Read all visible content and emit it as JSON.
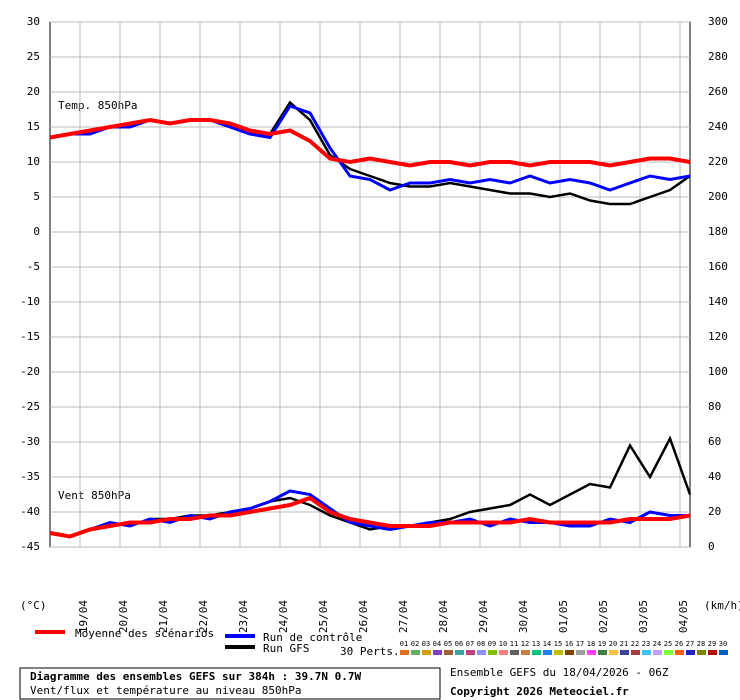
{
  "chart_data": {
    "type": "line",
    "title": "Diagramme des ensembles GEFS sur 384h : 39.7N 0.7W",
    "subtitle": "Vent/flux et température au niveau 850hPa",
    "run_label": "Ensemble GEFS du 18/04/2026 - 06Z",
    "copyright": "Copyright 2026 Meteociel.fr",
    "temp_panel_label": "Temp. 850hPa",
    "wind_panel_label": "Vent 850hPa",
    "y_label": "(°C)",
    "y2_label": "(km/h)",
    "perts_label": "30 Perts.",
    "grid": true,
    "xlim": [
      0,
      384
    ],
    "x": [
      0,
      12,
      24,
      36,
      48,
      60,
      72,
      84,
      96,
      108,
      120,
      132,
      144,
      156,
      168,
      180,
      192,
      204,
      216,
      228,
      240,
      252,
      264,
      276,
      288,
      300,
      312,
      324,
      336,
      348,
      360,
      372,
      384
    ],
    "xticks": [
      {
        "value": 18,
        "label": "19/04"
      },
      {
        "value": 42,
        "label": "20/04"
      },
      {
        "value": 66,
        "label": "21/04"
      },
      {
        "value": 90,
        "label": "22/04"
      },
      {
        "value": 114,
        "label": "23/04"
      },
      {
        "value": 138,
        "label": "24/04"
      },
      {
        "value": 162,
        "label": "25/04"
      },
      {
        "value": 186,
        "label": "26/04"
      },
      {
        "value": 210,
        "label": "27/04"
      },
      {
        "value": 234,
        "label": "28/04"
      },
      {
        "value": 258,
        "label": "29/04"
      },
      {
        "value": 282,
        "label": "30/04"
      },
      {
        "value": 306,
        "label": "01/05"
      },
      {
        "value": 330,
        "label": "02/05"
      },
      {
        "value": 354,
        "label": "03/05"
      },
      {
        "value": 378,
        "label": "04/05"
      }
    ],
    "ylim": [
      -45,
      30
    ],
    "yticks": [
      -45,
      -40,
      -35,
      -30,
      -25,
      -20,
      -15,
      -10,
      -5,
      0,
      5,
      10,
      15,
      20,
      25,
      30
    ],
    "y2lim": [
      0,
      300
    ],
    "y2ticks": [
      0,
      20,
      40,
      60,
      80,
      100,
      120,
      140,
      160,
      180,
      200,
      220,
      240,
      260,
      280,
      300
    ],
    "series": [
      {
        "name": "Moyenne des scénarios",
        "color": "#ff0000",
        "values": [
          13.5,
          14,
          14.5,
          15,
          15.5,
          16,
          15.5,
          16,
          16,
          15.5,
          14.5,
          14,
          14.5,
          13,
          10.5,
          10,
          10.5,
          10,
          9.5,
          10,
          10,
          9.5,
          10,
          10,
          9.5,
          10,
          10,
          10,
          9.5,
          10,
          10.5,
          10.5,
          10
        ]
      },
      {
        "name": "Run de contrôle",
        "color": "#0000ff",
        "values": [
          13.5,
          14,
          14,
          15,
          15,
          16,
          15.5,
          16,
          16,
          15,
          14,
          13.5,
          18,
          17,
          12,
          8,
          7.5,
          6,
          7,
          7,
          7.5,
          7,
          7.5,
          7,
          8,
          7,
          7.5,
          7,
          6,
          7,
          8,
          7.5,
          8
        ]
      },
      {
        "name": "Run GFS",
        "color": "#000000",
        "values": [
          13.5,
          14,
          14,
          15,
          15,
          16,
          15.5,
          16,
          16,
          15,
          14,
          14,
          18.5,
          16,
          11,
          9,
          8,
          7,
          6.5,
          6.5,
          7,
          6.5,
          6,
          5.5,
          5.5,
          5,
          5.5,
          4.5,
          4,
          4,
          5,
          6,
          8
        ]
      }
    ],
    "wind_series": [
      {
        "name": "Moyenne des scénarios",
        "color": "#ff0000",
        "axis": "y2",
        "values": [
          8,
          6,
          10,
          12,
          14,
          14,
          16,
          16,
          18,
          18,
          20,
          22,
          24,
          28,
          20,
          16,
          14,
          12,
          12,
          12,
          14,
          14,
          14,
          14,
          16,
          14,
          14,
          14,
          14,
          16,
          16,
          16,
          18
        ]
      },
      {
        "name": "Run de contrôle",
        "color": "#0000ff",
        "axis": "y2",
        "values": [
          8,
          6,
          10,
          14,
          12,
          16,
          14,
          18,
          16,
          20,
          22,
          26,
          32,
          30,
          22,
          14,
          12,
          10,
          12,
          14,
          14,
          16,
          12,
          16,
          14,
          14,
          12,
          12,
          16,
          14,
          20,
          18,
          18
        ]
      },
      {
        "name": "Run GFS",
        "color": "#000000",
        "axis": "y2",
        "values": [
          8,
          6,
          10,
          14,
          12,
          16,
          16,
          18,
          18,
          20,
          22,
          26,
          28,
          24,
          18,
          14,
          10,
          12,
          12,
          14,
          16,
          20,
          22,
          24,
          30,
          24,
          30,
          36,
          34,
          58,
          40,
          62,
          30
        ]
      }
    ],
    "perturbations": [
      {
        "name": "01",
        "color": "#e07020"
      },
      {
        "name": "02",
        "color": "#60b060"
      },
      {
        "name": "03",
        "color": "#d0a000"
      },
      {
        "name": "04",
        "color": "#8040c0"
      },
      {
        "name": "05",
        "color": "#a06030"
      },
      {
        "name": "06",
        "color": "#40a0a0"
      },
      {
        "name": "07",
        "color": "#c04080"
      },
      {
        "name": "08",
        "color": "#9090ff"
      },
      {
        "name": "09",
        "color": "#80c000"
      },
      {
        "name": "10",
        "color": "#ff8080"
      },
      {
        "name": "11",
        "color": "#606060"
      },
      {
        "name": "12",
        "color": "#c08040"
      },
      {
        "name": "13",
        "color": "#00c080"
      },
      {
        "name": "14",
        "color": "#2080ff"
      },
      {
        "name": "15",
        "color": "#c0c000"
      },
      {
        "name": "16",
        "color": "#804000"
      },
      {
        "name": "17",
        "color": "#a0a0a0"
      },
      {
        "name": "18",
        "color": "#ff40ff"
      },
      {
        "name": "19",
        "color": "#408040"
      },
      {
        "name": "20",
        "color": "#ffc040"
      },
      {
        "name": "21",
        "color": "#4040a0"
      },
      {
        "name": "22",
        "color": "#a04040"
      },
      {
        "name": "23",
        "color": "#40c0ff"
      },
      {
        "name": "24",
        "color": "#c0a0ff"
      },
      {
        "name": "25",
        "color": "#80ff40"
      },
      {
        "name": "26",
        "color": "#ff6000"
      },
      {
        "name": "27",
        "color": "#2020c0"
      },
      {
        "name": "28",
        "color": "#808000"
      },
      {
        "name": "29",
        "color": "#c00000"
      },
      {
        "name": "30",
        "color": "#0060c0"
      }
    ]
  }
}
